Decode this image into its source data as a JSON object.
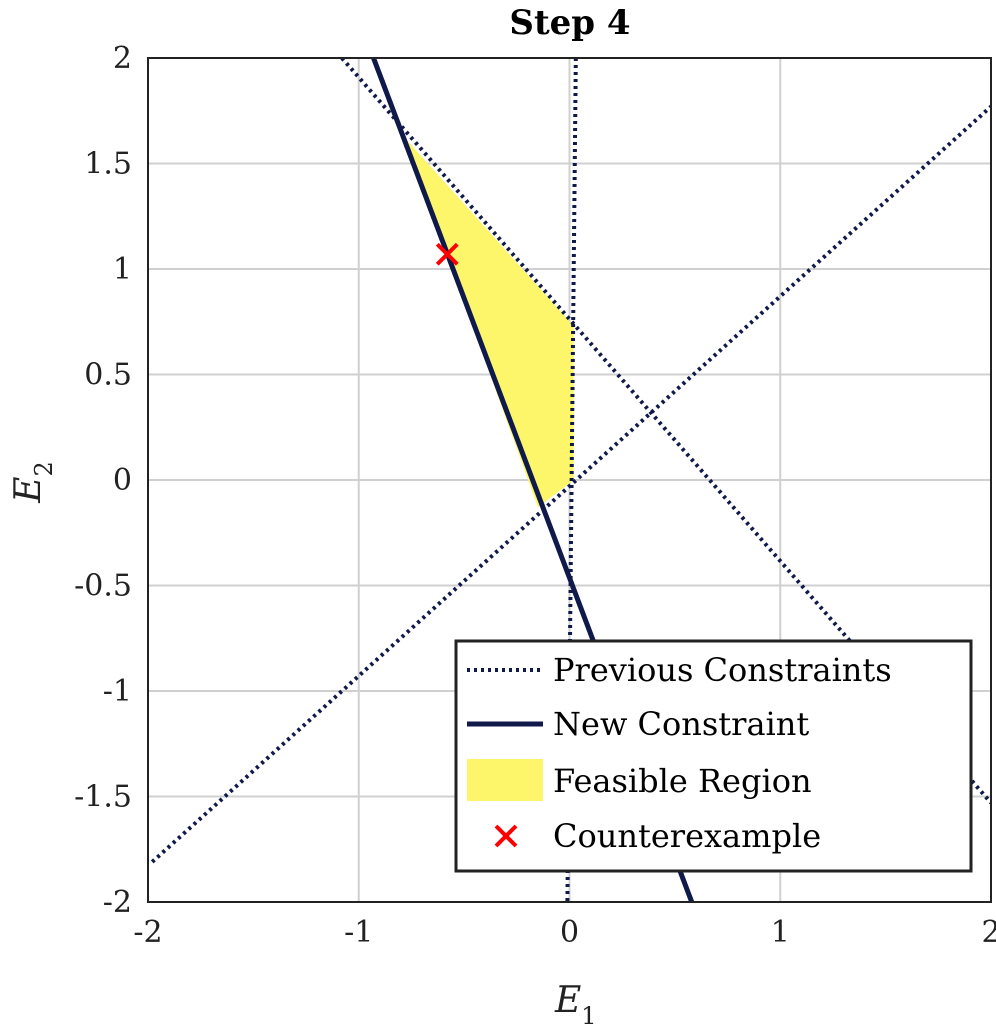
{
  "chart_data": {
    "type": "line",
    "title": "Step 4",
    "xlabel": "E",
    "xlabel_sub": "1",
    "ylabel": "E",
    "ylabel_sub": "2",
    "xlim": [
      -2,
      2
    ],
    "ylim": [
      -2,
      2
    ],
    "grid": true,
    "xticks": [
      -2,
      -1,
      0,
      1,
      2
    ],
    "yticks": [
      -2,
      -1.5,
      -1,
      -0.5,
      0,
      0.5,
      1,
      1.5,
      2
    ],
    "xtick_labels": [
      "-2",
      "-1",
      "0",
      "1",
      "2"
    ],
    "ytick_labels": [
      "-2",
      "-1.5",
      "-1",
      "-0.5",
      "0",
      "0.5",
      "1",
      "1.5",
      "2"
    ],
    "previous_constraints": [
      {
        "points": [
          [
            -1.08,
            2.0
          ],
          [
            2.0,
            -1.53
          ]
        ]
      },
      {
        "points": [
          [
            -1.98,
            -1.81
          ],
          [
            2.0,
            1.77
          ]
        ]
      },
      {
        "points": [
          [
            0.03,
            2.0
          ],
          [
            -0.01,
            -2.0
          ]
        ]
      }
    ],
    "new_constraint": {
      "points": [
        [
          -0.93,
          2.0
        ],
        [
          0.58,
          -2.0
        ]
      ]
    },
    "feasible_region": [
      [
        -0.78,
        1.62
      ],
      [
        0.02,
        0.73
      ],
      [
        0.02,
        0.0
      ],
      [
        -0.15,
        -0.13
      ]
    ],
    "counterexample": {
      "x": -0.58,
      "y": 1.07
    },
    "legend": {
      "position": "bottom-right",
      "entries": [
        "Previous Constraints",
        "New Constraint",
        "Feasible Region",
        "Counterexample"
      ]
    },
    "colors": {
      "constraint": "#0f1a4a",
      "feasible": "#fdf66b",
      "counterexample": "#ff0000",
      "grid": "#d0d0d0"
    }
  }
}
